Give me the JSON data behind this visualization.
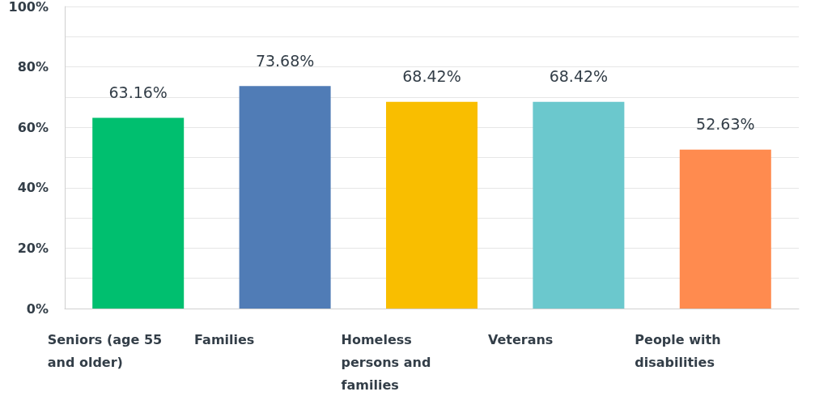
{
  "chart_data": {
    "type": "bar",
    "categories": [
      "Seniors (age 55 and older)",
      "Families",
      "Homeless persons and families",
      "Veterans",
      "People with disabilities"
    ],
    "values": [
      63.16,
      73.68,
      68.42,
      68.42,
      52.63
    ],
    "colors": [
      "#00bf6f",
      "#507cb6",
      "#f9be00",
      "#6bc8cd",
      "#ff8b4f"
    ],
    "value_labels": [
      "63.16%",
      "73.68%",
      "68.42%",
      "68.42%",
      "52.63%"
    ],
    "ylim": [
      0,
      100
    ],
    "yticks": [
      {
        "value": 0,
        "label": "0%"
      },
      {
        "value": 10,
        "label": null
      },
      {
        "value": 20,
        "label": "20%"
      },
      {
        "value": 30,
        "label": null
      },
      {
        "value": 40,
        "label": "40%"
      },
      {
        "value": 50,
        "label": null
      },
      {
        "value": 60,
        "label": "60%"
      },
      {
        "value": 70,
        "label": null
      },
      {
        "value": 80,
        "label": "80%"
      },
      {
        "value": 90,
        "label": null
      },
      {
        "value": 100,
        "label": "100%"
      }
    ],
    "grid": true
  }
}
